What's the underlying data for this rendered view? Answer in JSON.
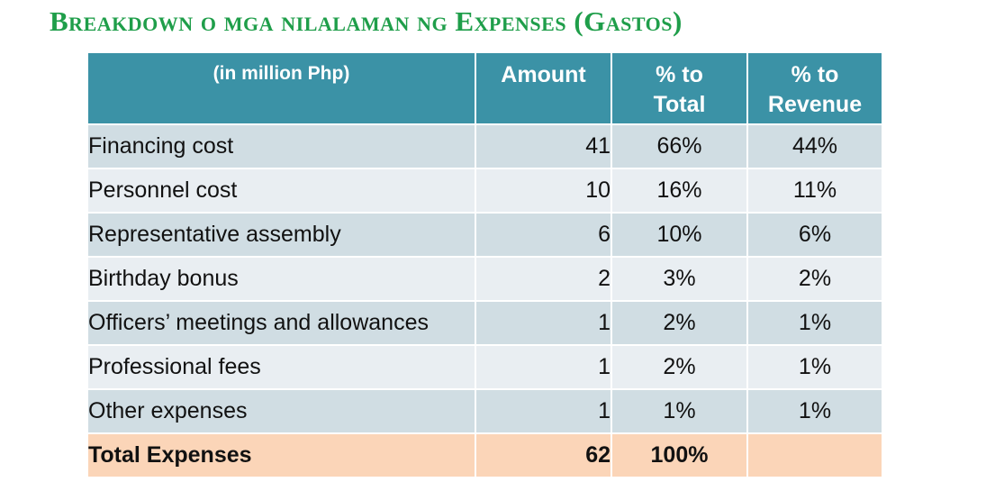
{
  "title": "Breakdown o mga nilalaman ng Expenses (Gastos)",
  "colors": {
    "title": "#1f9e4a",
    "header_bg": "#3b92a6",
    "row_dark": "#d0dde3",
    "row_light": "#e9eef2",
    "total_row": "#fbd5b8"
  },
  "table": {
    "headers": {
      "label": "(in million Php)",
      "amount": "Amount",
      "pct_total_line1": "% to",
      "pct_total_line2": "Total",
      "pct_revenue_line1": "% to",
      "pct_revenue_line2": "Revenue"
    },
    "rows": [
      {
        "label": "Financing cost",
        "amount": "41",
        "pct_total": "66%",
        "pct_revenue": "44%"
      },
      {
        "label": "Personnel cost",
        "amount": "10",
        "pct_total": "16%",
        "pct_revenue": "11%"
      },
      {
        "label": "Representative assembly",
        "amount": "6",
        "pct_total": "10%",
        "pct_revenue": "6%"
      },
      {
        "label": "Birthday bonus",
        "amount": "2",
        "pct_total": "3%",
        "pct_revenue": "2%"
      },
      {
        "label": "Officers’ meetings and allowances",
        "amount": "1",
        "pct_total": "2%",
        "pct_revenue": "1%"
      },
      {
        "label": "Professional fees",
        "amount": "1",
        "pct_total": "2%",
        "pct_revenue": "1%"
      },
      {
        "label": "Other expenses",
        "amount": "1",
        "pct_total": "1%",
        "pct_revenue": "1%"
      }
    ],
    "total": {
      "label": "Total Expenses",
      "amount": "62",
      "pct_total": "100%",
      "pct_revenue": ""
    }
  }
}
